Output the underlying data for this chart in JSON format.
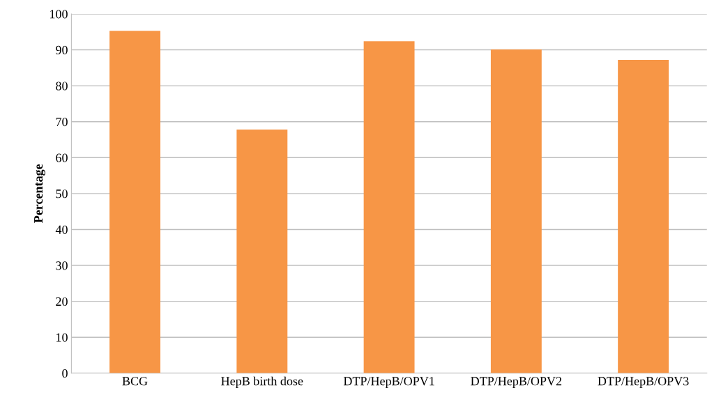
{
  "chart_data": {
    "type": "bar",
    "ylabel": "Percentage",
    "categories": [
      "BCG",
      "HepB birth dose",
      "DTP/HepB/OPV1",
      "DTP/HepB/OPV2",
      "DTP/HepB/OPV3"
    ],
    "values": [
      95.3,
      67.8,
      92.4,
      90.1,
      87.2
    ],
    "color": "#f79646",
    "ylim": [
      0,
      100
    ],
    "yticks": [
      0,
      10,
      20,
      30,
      40,
      50,
      60,
      70,
      80,
      90,
      100
    ],
    "grid": "y"
  }
}
